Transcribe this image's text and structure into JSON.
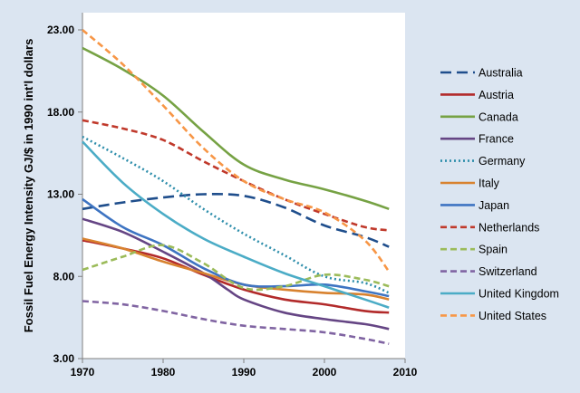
{
  "chart_data": {
    "type": "line",
    "ylabel": "Fossil Fuel Energy Intensity  GJ/$ in 1990 int'l dollars",
    "xlabel": "",
    "xlim": [
      1970,
      2010
    ],
    "ylim": [
      3,
      23
    ],
    "xticks": [
      "1970",
      "1980",
      "1990",
      "2000",
      "2010"
    ],
    "yticks": [
      "3.00",
      "8.00",
      "13.00",
      "18.00",
      "23.00"
    ],
    "grid": false,
    "legend_position": "right",
    "series": [
      {
        "name": "Australia",
        "color": "#1f4e8c",
        "dash": "dash-long",
        "x": [
          1970,
          1975,
          1980,
          1985,
          1990,
          1995,
          2000,
          2005,
          2008
        ],
        "y": [
          12.1,
          12.5,
          12.8,
          13.0,
          12.9,
          12.2,
          11.1,
          10.4,
          9.8
        ]
      },
      {
        "name": "Austria",
        "color": "#b22a2a",
        "dash": "solid",
        "x": [
          1970,
          1975,
          1980,
          1985,
          1990,
          1995,
          2000,
          2005,
          2008
        ],
        "y": [
          10.2,
          9.7,
          9.1,
          8.1,
          7.2,
          6.6,
          6.3,
          5.9,
          5.8
        ]
      },
      {
        "name": "Canada",
        "color": "#76a244",
        "dash": "solid",
        "x": [
          1970,
          1975,
          1980,
          1985,
          1990,
          1995,
          2000,
          2005,
          2008
        ],
        "y": [
          21.9,
          20.6,
          19.0,
          16.8,
          14.8,
          13.9,
          13.3,
          12.6,
          12.1
        ]
      },
      {
        "name": "France",
        "color": "#654584",
        "dash": "solid",
        "x": [
          1970,
          1975,
          1980,
          1985,
          1988,
          1990,
          1995,
          2000,
          2005,
          2008
        ],
        "y": [
          11.5,
          10.7,
          9.5,
          8.2,
          7.2,
          6.6,
          5.8,
          5.4,
          5.1,
          4.8
        ]
      },
      {
        "name": "Germany",
        "color": "#2e8eab",
        "dash": "dot",
        "x": [
          1970,
          1975,
          1980,
          1985,
          1990,
          1995,
          2000,
          2005,
          2008
        ],
        "y": [
          16.5,
          15.2,
          13.8,
          12.1,
          10.6,
          9.3,
          8.0,
          7.6,
          7.0
        ]
      },
      {
        "name": "Italy",
        "color": "#d8822f",
        "dash": "solid",
        "x": [
          1970,
          1975,
          1980,
          1985,
          1990,
          1995,
          2000,
          2005,
          2008
        ],
        "y": [
          10.3,
          9.7,
          8.9,
          8.2,
          7.5,
          7.2,
          7.0,
          6.9,
          6.6
        ]
      },
      {
        "name": "Japan",
        "color": "#3e74c2",
        "dash": "solid",
        "x": [
          1970,
          1975,
          1980,
          1985,
          1990,
          1995,
          2000,
          2005,
          2008
        ],
        "y": [
          12.7,
          11.0,
          9.9,
          8.5,
          7.5,
          7.4,
          7.5,
          7.1,
          6.8
        ]
      },
      {
        "name": "Netherlands",
        "color": "#c0392b",
        "dash": "dash-short",
        "x": [
          1970,
          1975,
          1980,
          1985,
          1990,
          1995,
          2000,
          2005,
          2008
        ],
        "y": [
          17.5,
          17.0,
          16.3,
          15.0,
          13.8,
          12.7,
          11.8,
          11.0,
          10.8
        ]
      },
      {
        "name": "Spain",
        "color": "#9bbb59",
        "dash": "dash-short",
        "x": [
          1970,
          1975,
          1980,
          1985,
          1990,
          1995,
          2000,
          2005,
          2008
        ],
        "y": [
          8.4,
          9.2,
          9.9,
          8.8,
          7.3,
          7.4,
          8.1,
          7.8,
          7.4
        ]
      },
      {
        "name": "Switzerland",
        "color": "#8064a2",
        "dash": "dash-short",
        "x": [
          1970,
          1975,
          1980,
          1985,
          1990,
          1995,
          2000,
          2005,
          2008
        ],
        "y": [
          6.5,
          6.3,
          5.9,
          5.4,
          5.0,
          4.8,
          4.6,
          4.2,
          3.9
        ]
      },
      {
        "name": "United Kingdom",
        "color": "#4bacc6",
        "dash": "solid",
        "x": [
          1970,
          1975,
          1980,
          1985,
          1990,
          1995,
          2000,
          2005,
          2008
        ],
        "y": [
          16.2,
          13.7,
          11.8,
          10.3,
          9.2,
          8.2,
          7.4,
          6.6,
          6.1
        ]
      },
      {
        "name": "United States",
        "color": "#f79646",
        "dash": "dash-short",
        "x": [
          1970,
          1975,
          1980,
          1985,
          1990,
          1995,
          2000,
          2005,
          2008
        ],
        "y": [
          23.0,
          20.9,
          18.4,
          15.8,
          13.8,
          12.7,
          11.9,
          10.2,
          8.3
        ]
      }
    ]
  }
}
